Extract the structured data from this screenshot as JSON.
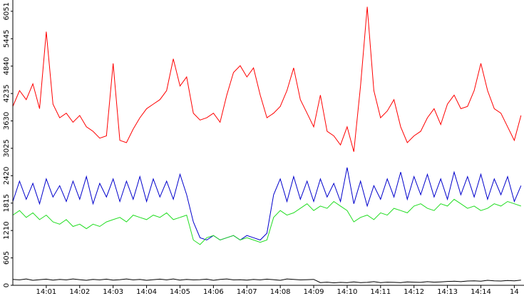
{
  "chart_data": {
    "type": "line",
    "x": [
      0,
      0.2,
      0.4,
      0.6,
      0.8,
      1,
      1.2,
      1.4,
      1.6,
      1.8,
      2,
      2.2,
      2.4,
      2.6,
      2.8,
      3,
      3.2,
      3.4,
      3.6,
      3.8,
      4,
      4.2,
      4.4,
      4.6,
      4.8,
      5,
      5.2,
      5.4,
      5.6,
      5.8,
      6,
      6.2,
      6.4,
      6.6,
      6.8,
      7,
      7.2,
      7.4,
      7.6,
      7.8,
      8,
      8.2,
      8.4,
      8.6,
      8.8,
      9,
      9.2,
      9.4,
      9.6,
      9.8,
      10,
      10.2,
      10.4,
      10.6,
      10.8,
      11,
      11.2,
      11.4,
      11.6,
      11.8,
      12,
      12.2,
      12.4,
      12.6,
      12.8,
      13,
      13.2,
      13.4,
      13.6,
      13.8,
      14,
      14.2,
      14.4,
      14.6,
      14.8,
      15,
      15.2
    ],
    "series": [
      {
        "color": "#ff0000",
        "values": [
          3950,
          4300,
          4100,
          4450,
          3900,
          5600,
          4000,
          3700,
          3800,
          3600,
          3750,
          3500,
          3400,
          3250,
          3300,
          4900,
          3200,
          3150,
          3450,
          3700,
          3900,
          4000,
          4100,
          4300,
          5000,
          4400,
          4600,
          3800,
          3650,
          3700,
          3800,
          3600,
          4200,
          4700,
          4850,
          4600,
          4800,
          4200,
          3700,
          3800,
          3950,
          4300,
          4800,
          4100,
          3800,
          3500,
          4200,
          3400,
          3300,
          3100,
          3500,
          2950,
          4400,
          6150,
          4300,
          3700,
          3850,
          4100,
          3500,
          3150,
          3300,
          3400,
          3700,
          3900,
          3550,
          4000,
          4200,
          3900,
          3950,
          4300,
          4900,
          4300,
          3900,
          3800,
          3500,
          3200,
          3750
        ]
      },
      {
        "color": "#0000cc",
        "values": [
          1850,
          2300,
          1900,
          2250,
          1800,
          2350,
          1950,
          2200,
          1850,
          2300,
          1900,
          2400,
          1800,
          2250,
          1950,
          2350,
          1850,
          2300,
          1900,
          2400,
          1850,
          2350,
          1950,
          2300,
          1900,
          2450,
          2000,
          1400,
          1050,
          1000,
          1100,
          1000,
          1050,
          1100,
          1000,
          1100,
          1050,
          1000,
          1150,
          2000,
          2350,
          1850,
          2400,
          1900,
          2300,
          1850,
          2350,
          1950,
          2250,
          1850,
          2600,
          1800,
          2300,
          1750,
          2200,
          1900,
          2350,
          1950,
          2500,
          1900,
          2400,
          2000,
          2450,
          1950,
          2350,
          1900,
          2500,
          2000,
          2400,
          1950,
          2450,
          1900,
          2350,
          2000,
          2400,
          1850,
          2200
        ]
      },
      {
        "color": "#22dd22",
        "values": [
          1550,
          1650,
          1500,
          1600,
          1450,
          1550,
          1400,
          1350,
          1450,
          1300,
          1350,
          1250,
          1350,
          1300,
          1400,
          1450,
          1500,
          1400,
          1550,
          1500,
          1450,
          1550,
          1500,
          1600,
          1450,
          1500,
          1550,
          1000,
          900,
          1050,
          1100,
          1000,
          1050,
          1100,
          1000,
          1050,
          1000,
          950,
          1000,
          1500,
          1650,
          1550,
          1600,
          1700,
          1800,
          1650,
          1750,
          1700,
          1850,
          1750,
          1650,
          1400,
          1500,
          1550,
          1450,
          1600,
          1550,
          1700,
          1650,
          1600,
          1750,
          1800,
          1700,
          1650,
          1800,
          1750,
          1900,
          1800,
          1700,
          1750,
          1650,
          1700,
          1800,
          1750,
          1850,
          1800,
          1750
        ]
      },
      {
        "color": "#000000",
        "values": [
          130,
          120,
          140,
          110,
          125,
          135,
          115,
          130,
          120,
          140,
          125,
          110,
          130,
          120,
          135,
          115,
          125,
          140,
          120,
          130,
          110,
          125,
          135,
          120,
          140,
          115,
          130,
          120,
          125,
          135,
          110,
          130,
          140,
          120,
          125,
          115,
          130,
          120,
          135,
          125,
          110,
          140,
          130,
          120,
          125,
          130,
          60,
          70,
          55,
          65,
          60,
          75,
          60,
          65,
          80,
          60,
          70,
          65,
          60,
          75,
          70,
          65,
          80,
          70,
          75,
          85,
          90,
          80,
          95,
          100,
          90,
          110,
          100,
          95,
          105,
          100,
          115
        ]
      }
    ],
    "xlim": [
      0,
      15.29
    ],
    "xticks": [
      {
        "value": 1,
        "label": "14:01"
      },
      {
        "value": 2,
        "label": "14:02"
      },
      {
        "value": 3,
        "label": "14:03"
      },
      {
        "value": 4,
        "label": "14:04"
      },
      {
        "value": 5,
        "label": "14:05"
      },
      {
        "value": 6,
        "label": "14:06"
      },
      {
        "value": 7,
        "label": "14:07"
      },
      {
        "value": 8,
        "label": "14:08"
      },
      {
        "value": 9,
        "label": "14:09"
      },
      {
        "value": 10,
        "label": "14:10"
      },
      {
        "value": 11,
        "label": "14:11"
      },
      {
        "value": 12,
        "label": "14:12"
      },
      {
        "value": 13,
        "label": "14:13"
      },
      {
        "value": 14,
        "label": "14:14"
      },
      {
        "value": 15,
        "label": "14"
      }
    ],
    "ylim": [
      0,
      6300
    ],
    "yticks": [
      0,
      605,
      1210,
      1815,
      2420,
      3025,
      3630,
      4235,
      4840,
      5445,
      6051
    ]
  }
}
